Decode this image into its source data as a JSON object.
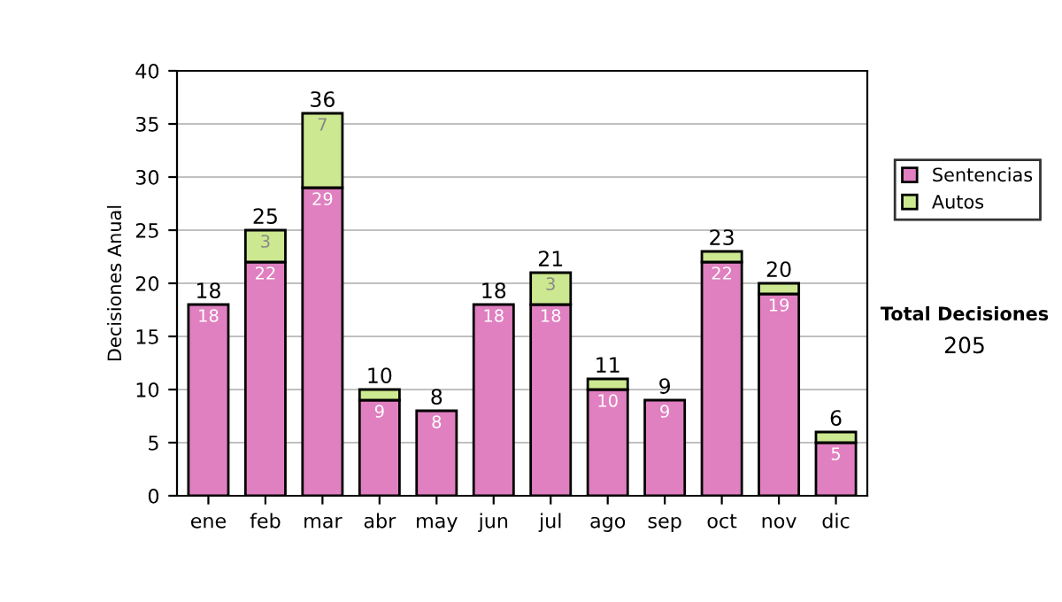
{
  "chart_data": {
    "type": "bar",
    "ylabel": "Decisiones Anual",
    "categories": [
      "ene",
      "feb",
      "mar",
      "abr",
      "may",
      "jun",
      "jul",
      "ago",
      "sep",
      "oct",
      "nov",
      "dic"
    ],
    "stacked": true,
    "series": [
      {
        "name": "Sentencias",
        "color": "#e080c0",
        "values": [
          18,
          22,
          29,
          9,
          8,
          18,
          18,
          10,
          9,
          22,
          19,
          5
        ],
        "value_labels": [
          "18",
          "22",
          "29",
          "9",
          "8",
          "18",
          "18",
          "10",
          "9",
          "22",
          "19",
          "5"
        ]
      },
      {
        "name": "Autos",
        "color": "#cce890",
        "values": [
          0,
          3,
          7,
          1,
          0,
          0,
          3,
          1,
          0,
          1,
          1,
          1
        ],
        "value_labels": [
          null,
          "3",
          "7",
          null,
          null,
          null,
          "3",
          null,
          null,
          null,
          null,
          null
        ]
      }
    ],
    "totals": [
      "18",
      "25",
      "36",
      "10",
      "8",
      "18",
      "21",
      "11",
      "9",
      "23",
      "20",
      "6"
    ],
    "ylim": [
      0,
      40
    ],
    "yticks": [
      0,
      5,
      10,
      15,
      20,
      25,
      30,
      35,
      40
    ],
    "grid": "y",
    "legend": "right",
    "annotations": [
      "Total Decisiones",
      "205"
    ]
  }
}
